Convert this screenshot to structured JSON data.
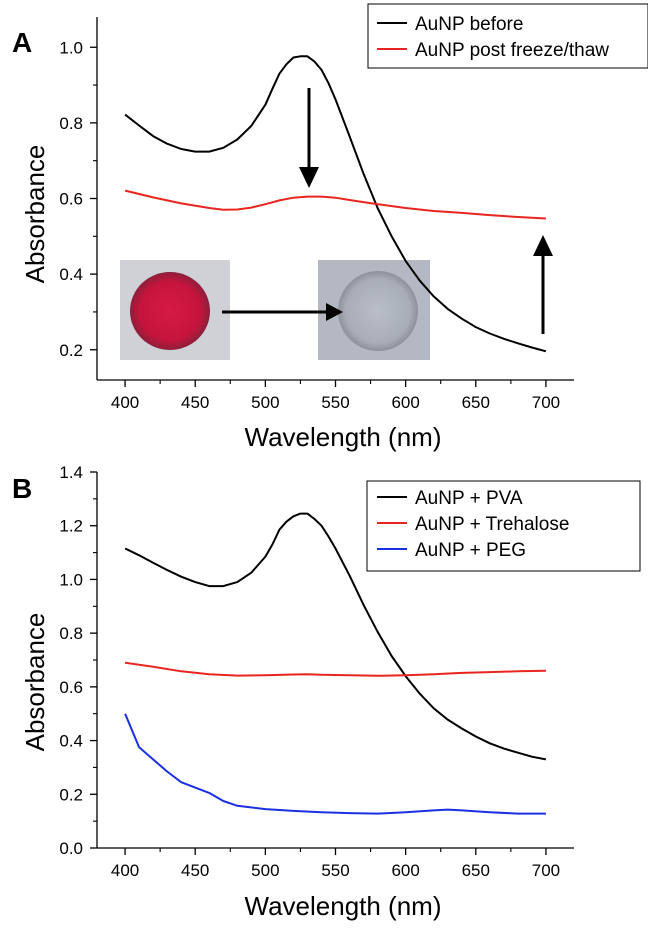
{
  "chart_data": [
    {
      "panel": "A",
      "type": "line",
      "xlabel": "Wavelength (nm)",
      "ylabel": "Absorbance",
      "xlim": [
        380,
        720
      ],
      "ylim": [
        0.12,
        1.08
      ],
      "xticks": [
        400,
        450,
        500,
        550,
        600,
        650,
        700
      ],
      "yticks": [
        0.2,
        0.4,
        0.6,
        0.8,
        1.0
      ],
      "ytick_labels": [
        "0.2",
        "0.4",
        "0.6",
        "0.8",
        "1.0"
      ],
      "legend_position": "top-right",
      "annotations": [
        "down-arrow at peak",
        "up-arrow at 700 nm",
        "well photo red → grey"
      ],
      "series": [
        {
          "name": "AuNP before",
          "color": "#000000",
          "x": [
            400,
            410,
            420,
            430,
            440,
            450,
            460,
            470,
            480,
            490,
            500,
            505,
            510,
            515,
            520,
            525,
            530,
            535,
            540,
            545,
            550,
            560,
            570,
            580,
            590,
            600,
            610,
            620,
            630,
            640,
            650,
            660,
            670,
            680,
            690,
            700
          ],
          "y": [
            0.822,
            0.793,
            0.765,
            0.745,
            0.731,
            0.724,
            0.724,
            0.734,
            0.756,
            0.792,
            0.848,
            0.89,
            0.93,
            0.955,
            0.973,
            0.976,
            0.976,
            0.962,
            0.94,
            0.905,
            0.862,
            0.765,
            0.665,
            0.575,
            0.5,
            0.435,
            0.383,
            0.341,
            0.308,
            0.282,
            0.26,
            0.243,
            0.229,
            0.217,
            0.206,
            0.196
          ]
        },
        {
          "name": "AuNP post freeze/thaw",
          "color": "#e8261f",
          "x": [
            400,
            420,
            440,
            460,
            470,
            480,
            490,
            500,
            510,
            520,
            530,
            540,
            550,
            560,
            580,
            600,
            620,
            640,
            660,
            680,
            700
          ],
          "y": [
            0.621,
            0.603,
            0.587,
            0.575,
            0.57,
            0.571,
            0.576,
            0.585,
            0.595,
            0.602,
            0.605,
            0.605,
            0.602,
            0.596,
            0.585,
            0.575,
            0.567,
            0.562,
            0.556,
            0.551,
            0.547
          ]
        }
      ]
    },
    {
      "panel": "B",
      "type": "line",
      "xlabel": "Wavelength (nm)",
      "ylabel": "Absorbance",
      "xlim": [
        380,
        720
      ],
      "ylim": [
        0,
        1.4
      ],
      "xticks": [
        400,
        450,
        500,
        550,
        600,
        650,
        700
      ],
      "yticks": [
        0,
        0.2,
        0.4,
        0.6,
        0.8,
        1.0,
        1.2,
        1.4
      ],
      "ytick_labels": [
        "0.0",
        "0.2",
        "0.4",
        "0.6",
        "0.8",
        "1.0",
        "1.2",
        "1.4"
      ],
      "legend_position": "top-right",
      "series": [
        {
          "name": "AuNP + PVA",
          "color": "#000000",
          "x": [
            400,
            410,
            420,
            430,
            440,
            450,
            460,
            470,
            480,
            490,
            500,
            505,
            510,
            515,
            520,
            525,
            530,
            535,
            540,
            545,
            550,
            560,
            570,
            580,
            590,
            600,
            610,
            620,
            630,
            640,
            650,
            660,
            670,
            680,
            690,
            700
          ],
          "y": [
            1.115,
            1.09,
            1.062,
            1.035,
            1.01,
            0.99,
            0.975,
            0.975,
            0.99,
            1.025,
            1.085,
            1.13,
            1.185,
            1.215,
            1.235,
            1.245,
            1.245,
            1.225,
            1.2,
            1.16,
            1.115,
            1.015,
            0.905,
            0.805,
            0.715,
            0.64,
            0.575,
            0.52,
            0.478,
            0.445,
            0.415,
            0.39,
            0.37,
            0.355,
            0.34,
            0.33
          ]
        },
        {
          "name": "AuNP + Trehalose",
          "color": "#e8261f",
          "x": [
            400,
            420,
            440,
            460,
            480,
            500,
            520,
            530,
            540,
            560,
            580,
            600,
            620,
            640,
            660,
            680,
            700
          ],
          "y": [
            0.69,
            0.675,
            0.658,
            0.647,
            0.642,
            0.643,
            0.646,
            0.647,
            0.645,
            0.643,
            0.641,
            0.643,
            0.647,
            0.652,
            0.655,
            0.658,
            0.66
          ]
        },
        {
          "name": "AuNP + PEG",
          "color": "#1c2fe3",
          "x": [
            400,
            410,
            420,
            430,
            440,
            450,
            460,
            470,
            480,
            500,
            520,
            540,
            560,
            580,
            600,
            620,
            630,
            640,
            660,
            680,
            700
          ],
          "y": [
            0.5,
            0.375,
            0.33,
            0.285,
            0.245,
            0.225,
            0.205,
            0.175,
            0.157,
            0.145,
            0.138,
            0.133,
            0.13,
            0.128,
            0.133,
            0.14,
            0.143,
            0.14,
            0.133,
            0.128,
            0.128
          ]
        }
      ]
    }
  ]
}
